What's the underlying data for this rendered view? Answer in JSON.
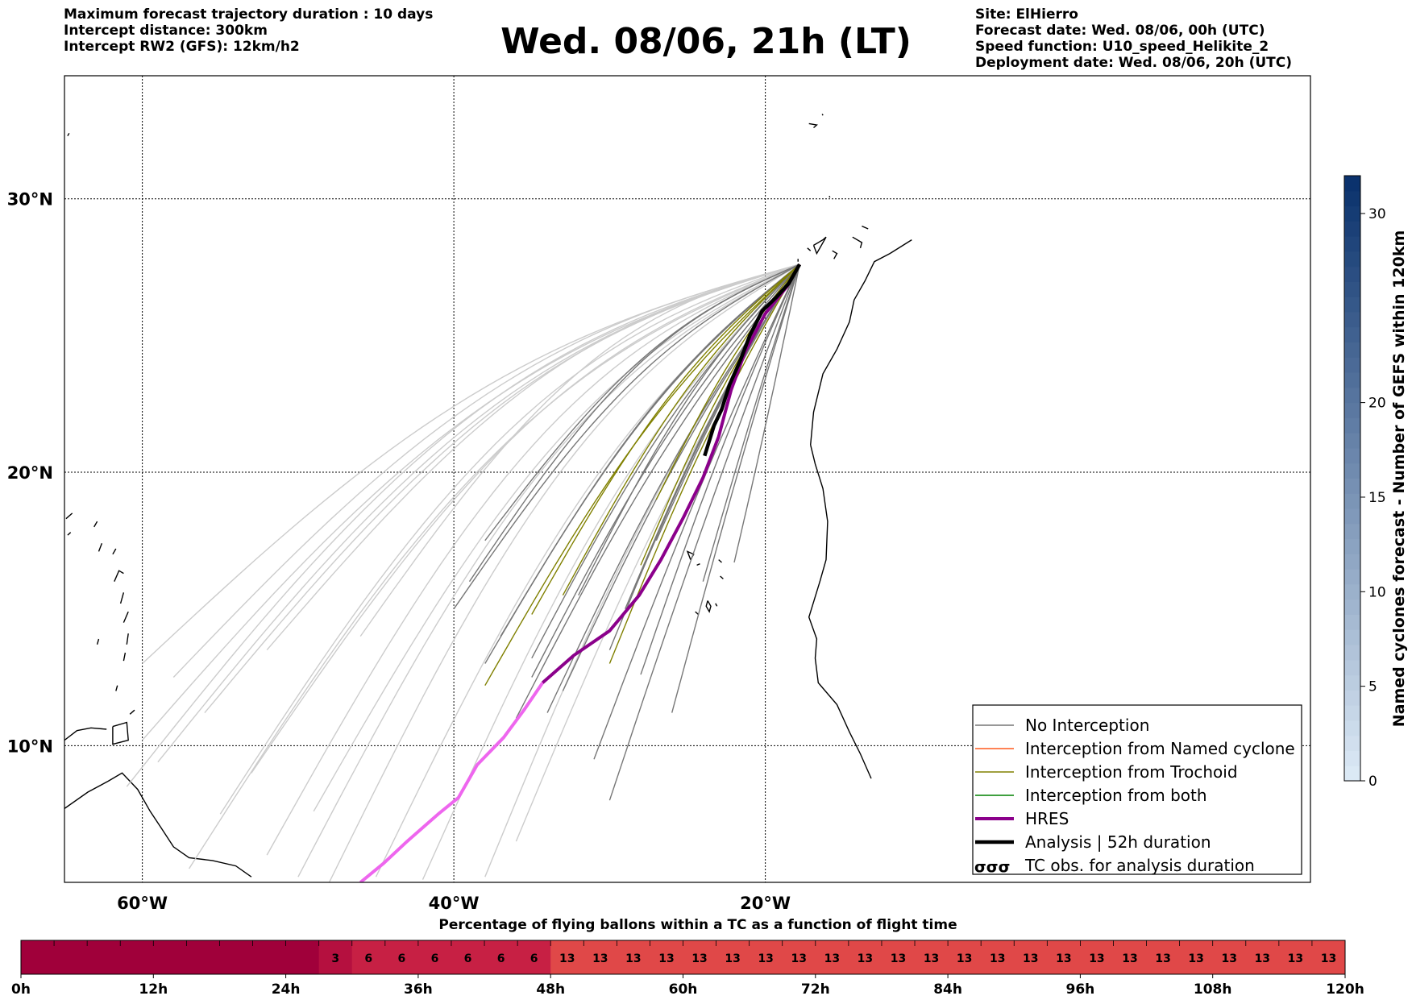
{
  "header": {
    "left_lines": [
      "Maximum forecast trajectory duration : 10 days",
      "Intercept distance: 300km",
      "Intercept RW2 (GFS):  12km/h2"
    ],
    "title": "Wed. 08/06, 21h (LT)",
    "right_lines": [
      "Site: ElHierro",
      "Forecast date: Wed. 08/06, 00h (UTC)",
      "Speed function: U10_speed_Helikite_2",
      "Deployment date: Wed. 08/06, 20h (UTC)"
    ]
  },
  "map": {
    "lon_range": [
      -65,
      15
    ],
    "lat_range": [
      5,
      34.5
    ],
    "lon_ticks": [
      {
        "value": -60,
        "label": "60°W"
      },
      {
        "value": -40,
        "label": "40°W"
      },
      {
        "value": -20,
        "label": "20°W"
      }
    ],
    "lat_ticks": [
      {
        "value": 30,
        "label": "30°N"
      },
      {
        "value": 20,
        "label": "20°N"
      },
      {
        "value": 10,
        "label": "10°N"
      }
    ],
    "colors": {
      "no_interception": "#777777",
      "faded": "#cccccc",
      "named_cyclone": "#ff5a1f",
      "trochoid": "#808000",
      "both": "#008000",
      "hres": "#8b008b",
      "hres_extended": "#ee66ee",
      "analysis": "#000000"
    }
  },
  "legend": {
    "items": [
      {
        "label": "No Interception",
        "style": "no_interception"
      },
      {
        "label": "Interception from Named cyclone",
        "style": "named_cyclone"
      },
      {
        "label": "Interception from Trochoid",
        "style": "trochoid"
      },
      {
        "label": "Interception from both",
        "style": "both"
      },
      {
        "label": "HRES",
        "style": "hres"
      },
      {
        "label": "Analysis | 52h duration",
        "style": "analysis"
      },
      {
        "label": "TC obs. for analysis duration",
        "style": "tc_obs"
      }
    ]
  },
  "colorbar": {
    "label": "Named cyclones forecast - Number of GEFS within 120km",
    "range": [
      0,
      32
    ],
    "ticks": [
      "0",
      "5",
      "10",
      "15",
      "20",
      "30"
    ]
  },
  "timeline": {
    "title": "Percentage of flying ballons within a TC as a function of flight time",
    "tick_labels": [
      "0h",
      "12h",
      "24h",
      "36h",
      "48h",
      "60h",
      "72h",
      "84h",
      "96h",
      "108h",
      "120h"
    ],
    "segment_hours": 3,
    "cells": [
      "",
      "",
      "",
      "",
      "",
      "",
      "",
      "",
      "",
      "3",
      "6",
      "6",
      "6",
      "6",
      "6",
      "6",
      "13",
      "13",
      "13",
      "13",
      "13",
      "13",
      "13",
      "13",
      "13",
      "13",
      "13",
      "13",
      "13",
      "13",
      "13",
      "13",
      "13",
      "13",
      "13",
      "13",
      "13",
      "13",
      "13",
      "13"
    ],
    "colors": {
      "": "#a0003a",
      "3": "#b5103f",
      "6": "#c72044",
      "13": "#e04848"
    }
  }
}
